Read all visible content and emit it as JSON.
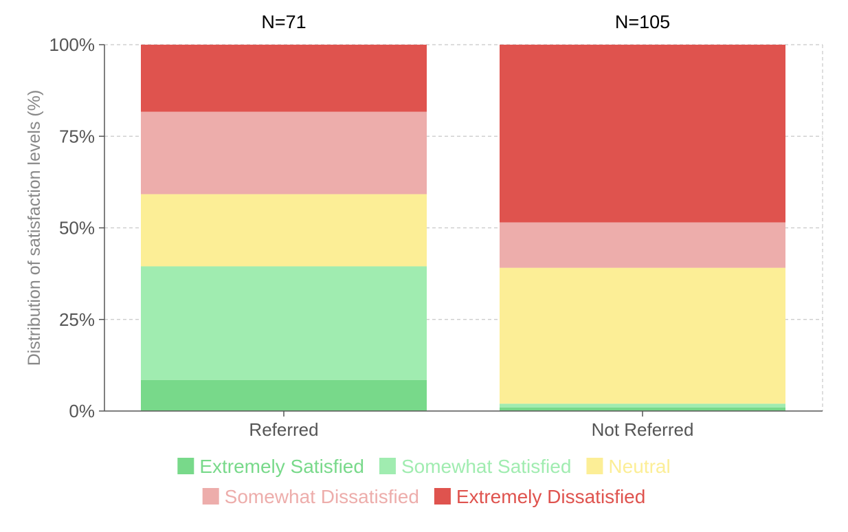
{
  "chart_data": {
    "type": "bar",
    "stacked": true,
    "normalized": true,
    "categories": [
      "Referred",
      "Not Referred"
    ],
    "counts": [
      "N=71",
      "N=105"
    ],
    "ylabel": "Distribution of satisfaction levels (%)",
    "xlabel": "",
    "ylim": [
      0,
      100
    ],
    "yticks": [
      0,
      25,
      50,
      75,
      100
    ],
    "ytick_labels": [
      "0%",
      "25%",
      "50%",
      "75%",
      "100%"
    ],
    "grid": true,
    "legend_position": "bottom",
    "series": [
      {
        "name": "Extremely Satisfied",
        "color": "#78d98a",
        "values": [
          8.5,
          1.0
        ]
      },
      {
        "name": "Somewhat Satisfied",
        "color": "#a0ecb0",
        "values": [
          31.0,
          1.0
        ]
      },
      {
        "name": "Neutral",
        "color": "#fcee96",
        "values": [
          19.7,
          37.1
        ]
      },
      {
        "name": "Somewhat Dissatisfied",
        "color": "#edadab",
        "values": [
          22.5,
          12.4
        ]
      },
      {
        "name": "Extremely Dissatisfied",
        "color": "#df534e",
        "values": [
          18.3,
          48.5
        ]
      }
    ]
  }
}
